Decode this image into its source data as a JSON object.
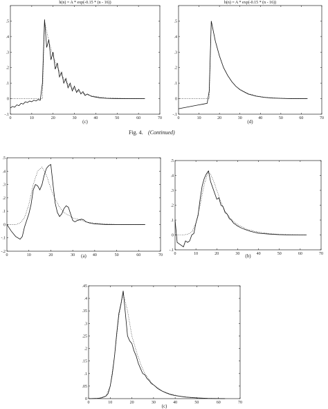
{
  "figure_caption": "Fig. 4.",
  "figure_caption_note": "(Continued)",
  "chart_data": [
    {
      "id": "top-c",
      "type": "line",
      "title": "h(n) = A * exp(-0.15 * (n - 16))",
      "caption": "(c)",
      "xlim": [
        0,
        70
      ],
      "ylim": [
        -0.1,
        0.6
      ],
      "xticks": [
        0,
        10,
        20,
        30,
        40,
        50,
        60,
        70
      ],
      "yticks": [
        -0.1,
        0,
        0.1,
        0.2,
        0.3,
        0.4,
        0.5
      ],
      "grid": false,
      "series": [
        {
          "style": "dotted",
          "x": [
            0,
            13,
            14,
            15,
            16,
            18,
            20,
            22,
            24,
            26,
            28,
            30,
            34,
            38,
            42,
            46,
            50,
            55,
            63
          ],
          "y": [
            0,
            0,
            0,
            0,
            0.5,
            0.37,
            0.275,
            0.2,
            0.15,
            0.11,
            0.08,
            0.06,
            0.033,
            0.018,
            0.01,
            0.005,
            0.003,
            0.001,
            0
          ]
        },
        {
          "style": "solid",
          "x": [
            0,
            1,
            2,
            3,
            4,
            5,
            6,
            7,
            8,
            9,
            10,
            11,
            12,
            13,
            14,
            15,
            16,
            17,
            18,
            19,
            20,
            21,
            22,
            23,
            24,
            25,
            26,
            27,
            28,
            29,
            30,
            31,
            32,
            33,
            34,
            35,
            36,
            38,
            40,
            42,
            45,
            50,
            55,
            63
          ],
          "y": [
            -0.06,
            -0.05,
            -0.055,
            -0.04,
            -0.045,
            -0.03,
            -0.035,
            -0.02,
            -0.025,
            -0.015,
            -0.02,
            -0.01,
            -0.015,
            -0.005,
            -0.01,
            0.1,
            0.51,
            0.33,
            0.38,
            0.25,
            0.3,
            0.19,
            0.23,
            0.14,
            0.17,
            0.1,
            0.13,
            0.07,
            0.1,
            0.05,
            0.08,
            0.04,
            0.06,
            0.03,
            0.045,
            0.02,
            0.03,
            0.015,
            0.01,
            0.005,
            0.002,
            0.0,
            0.0,
            0.0
          ]
        }
      ]
    },
    {
      "id": "top-d",
      "type": "line",
      "title": "h(n) = A * exp(-0.15 * (n - 16))",
      "caption": "(d)",
      "xlim": [
        0,
        70
      ],
      "ylim": [
        -0.1,
        0.6
      ],
      "xticks": [
        0,
        10,
        20,
        30,
        40,
        50,
        60,
        70
      ],
      "yticks": [
        -0.1,
        0,
        0.1,
        0.2,
        0.3,
        0.4,
        0.5
      ],
      "grid": false,
      "series": [
        {
          "style": "dotted",
          "x": [
            0,
            14,
            15,
            16,
            18,
            20,
            22,
            24,
            26,
            28,
            30,
            34,
            38,
            42,
            46,
            50,
            55,
            63
          ],
          "y": [
            0,
            0,
            0,
            0.5,
            0.37,
            0.275,
            0.2,
            0.15,
            0.11,
            0.08,
            0.06,
            0.033,
            0.018,
            0.01,
            0.005,
            0.003,
            0.001,
            0
          ]
        },
        {
          "style": "solid",
          "x": [
            0,
            2,
            4,
            6,
            8,
            10,
            12,
            14,
            15,
            16,
            18,
            20,
            22,
            24,
            26,
            28,
            30,
            34,
            38,
            42,
            46,
            50,
            55,
            63
          ],
          "y": [
            -0.065,
            -0.06,
            -0.055,
            -0.05,
            -0.045,
            -0.04,
            -0.035,
            -0.03,
            0.05,
            0.5,
            0.37,
            0.275,
            0.2,
            0.15,
            0.11,
            0.08,
            0.058,
            0.03,
            0.016,
            0.008,
            0.004,
            0.002,
            0.0,
            0.0
          ]
        }
      ]
    },
    {
      "id": "mid-a",
      "type": "line",
      "caption": "(a)",
      "xlim": [
        0,
        70
      ],
      "ylim": [
        -0.2,
        0.5
      ],
      "xticks": [
        0,
        10,
        20,
        30,
        40,
        50,
        60,
        70
      ],
      "yticks": [
        -0.2,
        -0.1,
        0,
        0.1,
        0.2,
        0.3,
        0.4,
        0.5
      ],
      "grid": false,
      "series": [
        {
          "style": "dotted",
          "x": [
            0,
            4,
            6,
            8,
            10,
            12,
            14,
            16,
            18,
            20,
            22,
            24,
            26,
            28,
            30,
            32,
            34,
            36,
            40,
            45,
            50,
            63
          ],
          "y": [
            0,
            0,
            0.01,
            0.05,
            0.15,
            0.3,
            0.4,
            0.43,
            0.37,
            0.27,
            0.19,
            0.13,
            0.09,
            0.07,
            0.05,
            0.04,
            0.03,
            0.02,
            0.01,
            0.004,
            0.001,
            0
          ]
        },
        {
          "style": "solid",
          "x": [
            0,
            2,
            4,
            6,
            7,
            8,
            10,
            11,
            12,
            13,
            14,
            15,
            16,
            17,
            18,
            19,
            20,
            21,
            22,
            23,
            24,
            25,
            26,
            27,
            28,
            29,
            30,
            31,
            32,
            33,
            34,
            35,
            36,
            38,
            40,
            45,
            50,
            63
          ],
          "y": [
            0,
            -0.05,
            -0.09,
            -0.11,
            -0.09,
            -0.02,
            0.08,
            0.15,
            0.26,
            0.3,
            0.29,
            0.26,
            0.3,
            0.37,
            0.42,
            0.44,
            0.45,
            0.3,
            0.16,
            0.09,
            0.06,
            0.08,
            0.12,
            0.14,
            0.13,
            0.08,
            0.03,
            0.02,
            0.03,
            0.035,
            0.04,
            0.035,
            0.02,
            0.01,
            0.005,
            0.0,
            0.0,
            0.0
          ]
        }
      ]
    },
    {
      "id": "mid-b",
      "type": "line",
      "caption": "(b)",
      "xlim": [
        0,
        70
      ],
      "ylim": [
        -0.1,
        0.5
      ],
      "xticks": [
        0,
        10,
        20,
        30,
        40,
        50,
        60,
        70
      ],
      "yticks": [
        -0.1,
        0,
        0.1,
        0.2,
        0.3,
        0.4,
        0.5
      ],
      "grid": false,
      "series": [
        {
          "style": "dotted",
          "x": [
            0,
            4,
            6,
            8,
            10,
            12,
            14,
            16,
            18,
            20,
            22,
            24,
            26,
            28,
            30,
            34,
            38,
            42,
            46,
            50,
            63
          ],
          "y": [
            0,
            0,
            0.005,
            0.02,
            0.08,
            0.2,
            0.34,
            0.43,
            0.38,
            0.3,
            0.22,
            0.16,
            0.12,
            0.09,
            0.07,
            0.04,
            0.025,
            0.015,
            0.008,
            0.004,
            0
          ]
        },
        {
          "style": "solid",
          "x": [
            0,
            1,
            2,
            3,
            4,
            5,
            6,
            7,
            8,
            9,
            10,
            11,
            12,
            13,
            14,
            15,
            16,
            17,
            18,
            19,
            20,
            21,
            22,
            23,
            24,
            25,
            26,
            27,
            28,
            29,
            30,
            32,
            34,
            36,
            38,
            40,
            45,
            50,
            55,
            63
          ],
          "y": [
            0.1,
            -0.05,
            -0.06,
            -0.07,
            -0.08,
            -0.04,
            -0.05,
            -0.04,
            0.0,
            0.01,
            0.08,
            0.13,
            0.24,
            0.33,
            0.38,
            0.41,
            0.43,
            0.36,
            0.32,
            0.28,
            0.24,
            0.25,
            0.2,
            0.19,
            0.15,
            0.14,
            0.11,
            0.1,
            0.08,
            0.07,
            0.06,
            0.045,
            0.035,
            0.025,
            0.018,
            0.012,
            0.006,
            0.002,
            0.0,
            0.0
          ]
        }
      ]
    },
    {
      "id": "bottom-c",
      "type": "line",
      "caption": "(c)",
      "xlim": [
        0,
        70
      ],
      "ylim": [
        0,
        0.45
      ],
      "xticks": [
        0,
        10,
        20,
        30,
        40,
        50,
        60,
        70
      ],
      "yticks": [
        0,
        0.05,
        0.1,
        0.15,
        0.2,
        0.25,
        0.3,
        0.35,
        0.4,
        0.45
      ],
      "grid": false,
      "series": [
        {
          "style": "dotted",
          "x": [
            0,
            5,
            8,
            10,
            12,
            14,
            16,
            18,
            20,
            22,
            24,
            26,
            28,
            30,
            34,
            38,
            42,
            46,
            50,
            55,
            63
          ],
          "y": [
            0,
            0.002,
            0.01,
            0.05,
            0.17,
            0.33,
            0.42,
            0.35,
            0.25,
            0.19,
            0.14,
            0.1,
            0.075,
            0.055,
            0.03,
            0.018,
            0.01,
            0.005,
            0.002,
            0.001,
            0
          ]
        },
        {
          "style": "solid",
          "x": [
            0,
            4,
            6,
            8,
            9,
            10,
            11,
            12,
            13,
            14,
            15,
            16,
            17,
            18,
            19,
            20,
            21,
            22,
            23,
            24,
            25,
            26,
            27,
            28,
            29,
            30,
            32,
            34,
            36,
            38,
            40,
            45,
            50,
            55,
            63
          ],
          "y": [
            0,
            0.001,
            0.003,
            0.01,
            0.02,
            0.05,
            0.1,
            0.17,
            0.26,
            0.34,
            0.38,
            0.43,
            0.34,
            0.25,
            0.23,
            0.22,
            0.19,
            0.17,
            0.14,
            0.12,
            0.1,
            0.095,
            0.08,
            0.072,
            0.06,
            0.055,
            0.04,
            0.03,
            0.022,
            0.016,
            0.012,
            0.006,
            0.003,
            0.001,
            0.0
          ]
        }
      ]
    }
  ]
}
